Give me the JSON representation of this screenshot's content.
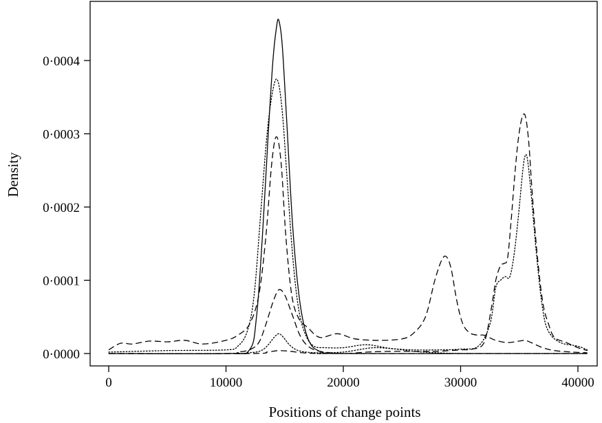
{
  "chart_data": {
    "type": "line",
    "title": "",
    "xlabel": "Positions of change points",
    "ylabel": "Density",
    "xlim": [
      0,
      41000
    ],
    "ylim": [
      0,
      0.00046
    ],
    "x_ticks": [
      {
        "value": 0,
        "label": "0"
      },
      {
        "value": 10000,
        "label": "10000"
      },
      {
        "value": 20000,
        "label": "20000"
      },
      {
        "value": 30000,
        "label": "30000"
      },
      {
        "value": 40000,
        "label": "40000"
      }
    ],
    "y_ticks": [
      {
        "value": 0,
        "label": "0·0000"
      },
      {
        "value": 0.0001,
        "label": "0·0001"
      },
      {
        "value": 0.0002,
        "label": "0·0002"
      },
      {
        "value": 0.0003,
        "label": "0·0003"
      },
      {
        "value": 0.0004,
        "label": "0·0004"
      }
    ],
    "grid": false,
    "legend": "none",
    "series": [
      {
        "style": "solid",
        "x": [
          0,
          10000,
          12000,
          12600,
          13100,
          13600,
          14000,
          14300,
          14500,
          14800,
          15200,
          15700,
          16300,
          17000,
          18000,
          20000,
          30000,
          40800
        ],
        "y": [
          0,
          0,
          5e-06,
          5e-05,
          0.00016,
          0.0003,
          0.0004,
          0.000445,
          0.000455,
          0.00042,
          0.00031,
          0.00017,
          7e-05,
          2e-05,
          3e-06,
          0,
          0,
          0
        ]
      },
      {
        "style": "dotted",
        "x": [
          0,
          5000,
          10000,
          11000,
          11800,
          12400,
          13000,
          13500,
          14000,
          14400,
          14800,
          15200,
          15700,
          16200,
          16800,
          17500,
          18500,
          20000,
          22000,
          24000,
          26000,
          28000,
          30000,
          31500,
          32500,
          33000,
          33400,
          33800,
          34200,
          34600,
          35000,
          35300,
          35500,
          35700,
          36000,
          36500,
          37000,
          37500,
          38500,
          40000,
          40800
        ],
        "y": [
          2e-06,
          4e-06,
          5e-06,
          1e-05,
          3e-05,
          8e-05,
          0.0002,
          0.0003,
          0.00036,
          0.000373,
          0.00033,
          0.00024,
          0.00013,
          6e-05,
          2.5e-05,
          1e-05,
          8e-06,
          8e-06,
          1.2e-05,
          7e-06,
          5e-06,
          5e-06,
          6e-06,
          1e-05,
          4e-05,
          9e-05,
          0.0001,
          0.000105,
          0.000105,
          0.00014,
          0.0002,
          0.00025,
          0.00027,
          0.000265,
          0.00022,
          0.00013,
          6e-05,
          3e-05,
          1.5e-05,
          1e-05,
          5e-06
        ]
      },
      {
        "style": "dashed",
        "x": [
          0,
          1000,
          2000,
          3500,
          5000,
          6500,
          8000,
          10000,
          11000,
          12000,
          12800,
          13400,
          13900,
          14300,
          14700,
          15100,
          15600,
          16200,
          17000,
          18000,
          19500,
          21000,
          23000,
          25000,
          26000,
          27000,
          27800,
          28400,
          28800,
          29200,
          29700,
          30200,
          30800,
          31500,
          32000,
          33000,
          34000,
          35000,
          35500,
          36000,
          37000,
          38000,
          39500,
          40800
        ],
        "y": [
          5e-06,
          1.4e-05,
          1.3e-05,
          1.7e-05,
          1.6e-05,
          1.8e-05,
          1.3e-05,
          1.8e-05,
          2.5e-05,
          4e-05,
          8e-05,
          0.00016,
          0.00026,
          0.000296,
          0.00026,
          0.00016,
          8e-05,
          4.8e-05,
          3.5e-05,
          2.2e-05,
          2.7e-05,
          2e-05,
          1.8e-05,
          2e-05,
          2.8e-05,
          5e-05,
          0.0001,
          0.000128,
          0.000132,
          0.000115,
          7e-05,
          4e-05,
          2.8e-05,
          2.5e-05,
          2.5e-05,
          1.8e-05,
          1.5e-05,
          1.7e-05,
          1.8e-05,
          1.5e-05,
          8e-06,
          4e-06,
          2e-06,
          1e-06
        ]
      },
      {
        "style": "dashed",
        "x": [
          0,
          10000,
          11000,
          12000,
          12800,
          13400,
          14000,
          14500,
          15000,
          15600,
          16300,
          17000,
          18000,
          20000,
          22000,
          24000,
          26000,
          28000,
          30000,
          31000,
          32000,
          32600,
          33000,
          33400,
          33700,
          34000,
          34300,
          34600,
          34900,
          35200,
          35500,
          35800,
          36100,
          36500,
          37000,
          37500,
          38000,
          39000,
          40000,
          40800
        ],
        "y": [
          0,
          0,
          2e-06,
          5e-06,
          1.5e-05,
          4e-05,
          7e-05,
          8.7e-05,
          8e-05,
          5.5e-05,
          2.5e-05,
          1e-05,
          3e-06,
          0,
          2e-06,
          3e-06,
          3e-06,
          3e-06,
          5e-06,
          6e-06,
          1.5e-05,
          6e-05,
          0.0001,
          0.00012,
          0.000123,
          0.00013,
          0.00018,
          0.00024,
          0.00029,
          0.00032,
          0.000325,
          0.00029,
          0.00022,
          0.00014,
          7e-05,
          4e-05,
          2.2e-05,
          1.5e-05,
          8e-06,
          4e-06
        ]
      },
      {
        "style": "dotted",
        "x": [
          0,
          10000,
          12000,
          13000,
          13600,
          14100,
          14500,
          14900,
          15400,
          16000,
          16800,
          18000,
          20000,
          22000,
          23000,
          24500,
          26000,
          28000,
          30000,
          32000,
          40800
        ],
        "y": [
          0,
          0,
          1e-06,
          4e-06,
          1.2e-05,
          2.2e-05,
          2.7e-05,
          2.2e-05,
          1.2e-05,
          5e-06,
          2e-06,
          1e-06,
          2e-06,
          7e-06,
          8e-06,
          6e-06,
          3e-06,
          1e-06,
          0,
          0,
          0
        ]
      },
      {
        "style": "dashed",
        "x": [
          0,
          12000,
          13500,
          14500,
          15500,
          16500,
          18000,
          20000,
          40800
        ],
        "y": [
          0,
          0,
          2e-06,
          4e-06,
          3e-06,
          1e-06,
          0,
          0,
          0
        ]
      }
    ]
  }
}
